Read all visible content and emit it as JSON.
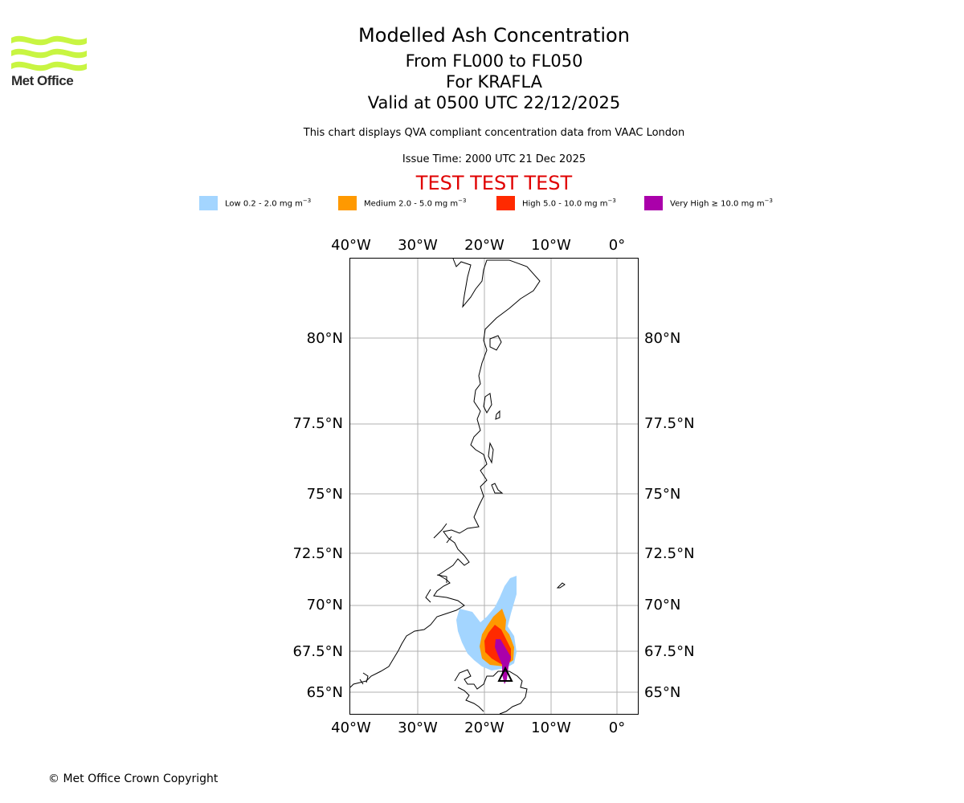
{
  "logo": {
    "text": "Met Office",
    "color": "#c8f542"
  },
  "header": {
    "title": "Modelled Ash Concentration",
    "levels": "From FL000 to FL050",
    "volcano": "For KRAFLA",
    "valid": "Valid at 0500 UTC 22/12/2025",
    "note": "This chart displays QVA compliant concentration data from VAAC London",
    "issue_time": "Issue Time: 2000 UTC 21 Dec 2025",
    "test_banner": "TEST TEST TEST",
    "test_color": "#e00000"
  },
  "legend": [
    {
      "label": "Low 0.2 - 2.0 mg m",
      "sup": "−3",
      "color": "#a3d5ff"
    },
    {
      "label": "Medium 2.0 - 5.0 mg m",
      "sup": "−3",
      "color": "#ff9900"
    },
    {
      "label": "High 5.0 - 10.0 mg m",
      "sup": "−3",
      "color": "#ff2a00"
    },
    {
      "label": "Very High  ≥  10.0 mg m",
      "sup": "−3",
      "color": "#aa00aa"
    }
  ],
  "map": {
    "lon_ticks": [
      "40°W",
      "30°W",
      "20°W",
      "10°W",
      "0°"
    ],
    "lat_ticks": [
      "80°N",
      "77.5°N",
      "75°N",
      "72.5°N",
      "70°N",
      "67.5°N",
      "65°N"
    ],
    "volcano_marker": "triangle",
    "grid_color": "#b0b0b0"
  },
  "footer": {
    "copyright": "© Met Office Crown Copyright"
  }
}
